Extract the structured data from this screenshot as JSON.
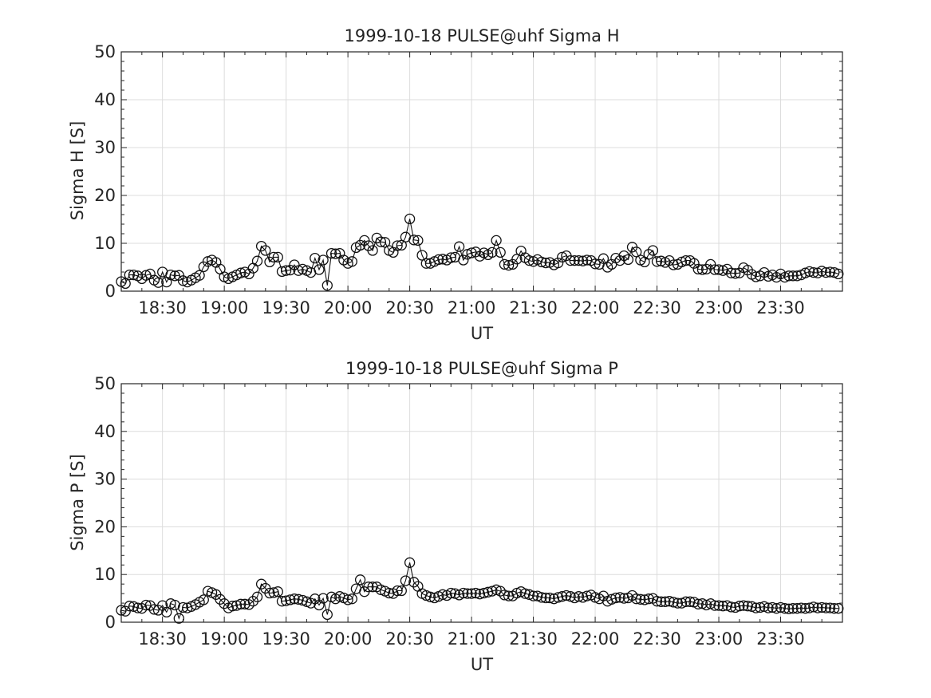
{
  "chart_data": [
    {
      "type": "line",
      "title": "1999-10-18  PULSE@uhf Sigma H",
      "xlabel": "UT",
      "ylabel": "Sigma H [S]",
      "ylim": [
        0,
        50
      ],
      "yticks": [
        0,
        10,
        20,
        30,
        40,
        50
      ],
      "xlim": [
        "18:10",
        "00:00"
      ],
      "xticks": [
        "18:30",
        "19:00",
        "19:30",
        "20:00",
        "20:30",
        "21:00",
        "21:30",
        "22:00",
        "22:30",
        "23:00",
        "23:30"
      ],
      "grid": true,
      "marker": "open-circle",
      "x_start": "18:10",
      "x_step_minutes": 2,
      "values": [
        2.0,
        1.6,
        3.4,
        3.4,
        3.2,
        2.6,
        3.3,
        3.6,
        2.3,
        1.8,
        4.0,
        1.9,
        3.4,
        3.2,
        3.3,
        2.2,
        1.9,
        2.3,
        2.8,
        3.3,
        5.1,
        6.2,
        6.5,
        6.0,
        4.6,
        3.0,
        2.6,
        3.0,
        3.4,
        3.8,
        4.0,
        3.6,
        4.8,
        6.3,
        9.4,
        8.5,
        6.1,
        7.1,
        7.1,
        4.1,
        4.3,
        4.4,
        5.5,
        4.3,
        4.6,
        4.3,
        3.9,
        6.9,
        4.5,
        6.5,
        1.2,
        7.9,
        7.8,
        7.9,
        6.5,
        5.8,
        6.2,
        9.1,
        9.6,
        10.6,
        9.5,
        8.5,
        11.1,
        10.3,
        10.2,
        8.5,
        8.1,
        9.5,
        9.6,
        11.3,
        15.1,
        10.7,
        10.6,
        7.5,
        5.8,
        5.8,
        6.2,
        6.6,
        6.7,
        6.5,
        7.0,
        7.1,
        9.3,
        6.5,
        7.7,
        8.0,
        8.2,
        7.3,
        8.0,
        7.6,
        8.1,
        10.6,
        8.1,
        5.6,
        5.4,
        5.6,
        6.7,
        8.4,
        7.0,
        6.4,
        6.2,
        6.6,
        6.1,
        5.9,
        6.0,
        5.5,
        5.9,
        7.1,
        7.4,
        6.4,
        6.4,
        6.4,
        6.3,
        6.5,
        6.4,
        5.7,
        5.6,
        6.8,
        5.0,
        5.6,
        6.9,
        6.4,
        7.4,
        6.6,
        9.2,
        8.2,
        6.5,
        6.1,
        7.7,
        8.5,
        6.2,
        6.3,
        6.0,
        6.4,
        5.5,
        5.6,
        6.1,
        6.4,
        6.4,
        5.8,
        4.6,
        4.5,
        4.6,
        5.6,
        4.5,
        4.5,
        4.3,
        4.6,
        3.8,
        3.7,
        3.8,
        4.9,
        4.4,
        3.5,
        3.0,
        3.2,
        3.9,
        3.1,
        3.4,
        2.9,
        3.6,
        2.9,
        3.2,
        3.2,
        3.2,
        3.4,
        3.8,
        4.1,
        3.9,
        3.8,
        4.2,
        3.9,
        4.0,
        3.9,
        3.6
      ]
    },
    {
      "type": "line",
      "title": "1999-10-18  PULSE@uhf Sigma P",
      "xlabel": "UT",
      "ylabel": "Sigma P [S]",
      "ylim": [
        0,
        50
      ],
      "yticks": [
        0,
        10,
        20,
        30,
        40,
        50
      ],
      "xlim": [
        "18:10",
        "00:00"
      ],
      "xticks": [
        "18:30",
        "19:00",
        "19:30",
        "20:00",
        "20:30",
        "21:00",
        "21:30",
        "22:00",
        "22:30",
        "23:00",
        "23:30"
      ],
      "grid": true,
      "marker": "open-circle",
      "x_start": "18:10",
      "x_step_minutes": 2,
      "values": [
        2.5,
        2.3,
        3.4,
        3.3,
        3.0,
        2.9,
        3.6,
        3.5,
        2.7,
        2.5,
        3.5,
        2.1,
        3.9,
        3.6,
        0.8,
        3.1,
        3.0,
        3.3,
        3.7,
        4.2,
        4.7,
        6.5,
        6.2,
        5.8,
        4.8,
        3.9,
        3.0,
        3.4,
        3.5,
        3.8,
        3.8,
        3.7,
        4.4,
        5.3,
        8.0,
        7.1,
        6.1,
        6.2,
        6.4,
        4.4,
        4.5,
        4.7,
        4.9,
        4.8,
        4.6,
        4.3,
        4.0,
        4.9,
        3.6,
        5.0,
        1.6,
        5.3,
        4.9,
        5.4,
        5.1,
        4.7,
        4.9,
        7.0,
        8.9,
        6.4,
        7.4,
        7.4,
        7.4,
        6.8,
        6.5,
        6.1,
        6.0,
        6.6,
        6.6,
        8.7,
        12.5,
        8.4,
        7.5,
        6.0,
        5.6,
        5.3,
        5.1,
        5.4,
        5.8,
        5.6,
        6.1,
        6.0,
        5.7,
        6.1,
        6.0,
        6.0,
        6.1,
        5.9,
        6.1,
        6.3,
        6.5,
        6.8,
        6.5,
        5.7,
        5.5,
        5.5,
        6.1,
        6.4,
        6.0,
        5.8,
        5.5,
        5.5,
        5.2,
        5.1,
        5.1,
        4.9,
        5.2,
        5.4,
        5.6,
        5.4,
        5.1,
        5.4,
        5.2,
        5.5,
        5.7,
        5.2,
        4.9,
        5.5,
        4.4,
        4.8,
        5.1,
        5.2,
        5.0,
        5.1,
        5.6,
        4.9,
        4.8,
        4.7,
        4.9,
        5.0,
        4.4,
        4.3,
        4.3,
        4.4,
        4.2,
        4.0,
        4.0,
        4.3,
        4.3,
        4.2,
        3.8,
        3.9,
        3.6,
        3.9,
        3.5,
        3.5,
        3.4,
        3.5,
        3.2,
        3.1,
        3.4,
        3.5,
        3.4,
        3.3,
        3.0,
        3.1,
        3.3,
        3.0,
        3.1,
        2.9,
        3.1,
        2.9,
        2.8,
        2.9,
        2.9,
        3.0,
        2.9,
        3.0,
        3.2,
        3.0,
        3.1,
        3.0,
        3.0,
        2.9,
        2.9
      ]
    }
  ]
}
